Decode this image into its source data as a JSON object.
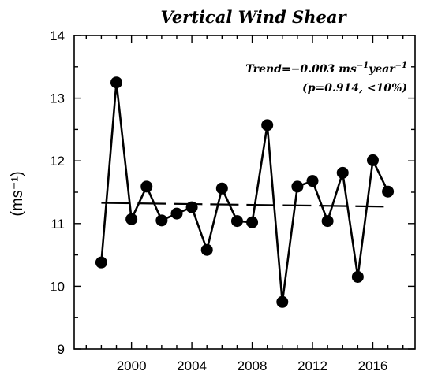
{
  "chart_data": {
    "type": "line",
    "title": "Vertical Wind Shear",
    "ylabel": "(ms⁻¹)",
    "xlabel": "",
    "x": [
      1998,
      1999,
      2000,
      2001,
      2002,
      2003,
      2004,
      2005,
      2006,
      2007,
      2008,
      2009,
      2010,
      2011,
      2012,
      2013,
      2014,
      2015,
      2016,
      2017
    ],
    "series": [
      {
        "values": [
          10.38,
          13.25,
          11.07,
          11.59,
          11.05,
          11.16,
          11.26,
          10.58,
          11.56,
          11.04,
          11.02,
          12.57,
          9.75,
          11.59,
          11.68,
          11.04,
          11.81,
          10.15,
          12.01,
          11.51
        ]
      }
    ],
    "trend_line": {
      "style": "dashed",
      "x": [
        1998,
        2017
      ],
      "y": [
        11.33,
        11.27
      ]
    },
    "xlim": [
      1996.2,
      2018.8
    ],
    "ylim": [
      9,
      14
    ],
    "xticks": [
      2000,
      2004,
      2008,
      2012,
      2016
    ],
    "xtick_labels": [
      "2000",
      "2004",
      "2008",
      "2012",
      "2016"
    ],
    "yticks": [
      9,
      10,
      11,
      12,
      13,
      14
    ],
    "ytick_labels": [
      "9",
      "10",
      "11",
      "12",
      "13",
      "14"
    ],
    "annotation": {
      "line1_prefix": "Trend=−0.003 ms",
      "line1_sup1": "−1",
      "line1_mid": "year",
      "line1_sup2": "−1",
      "line2": "(p=0.914, <10%)"
    },
    "grid": false,
    "legend": "none",
    "colors": {
      "line": "#000000",
      "marker": "#000000",
      "background": "#ffffff"
    }
  }
}
